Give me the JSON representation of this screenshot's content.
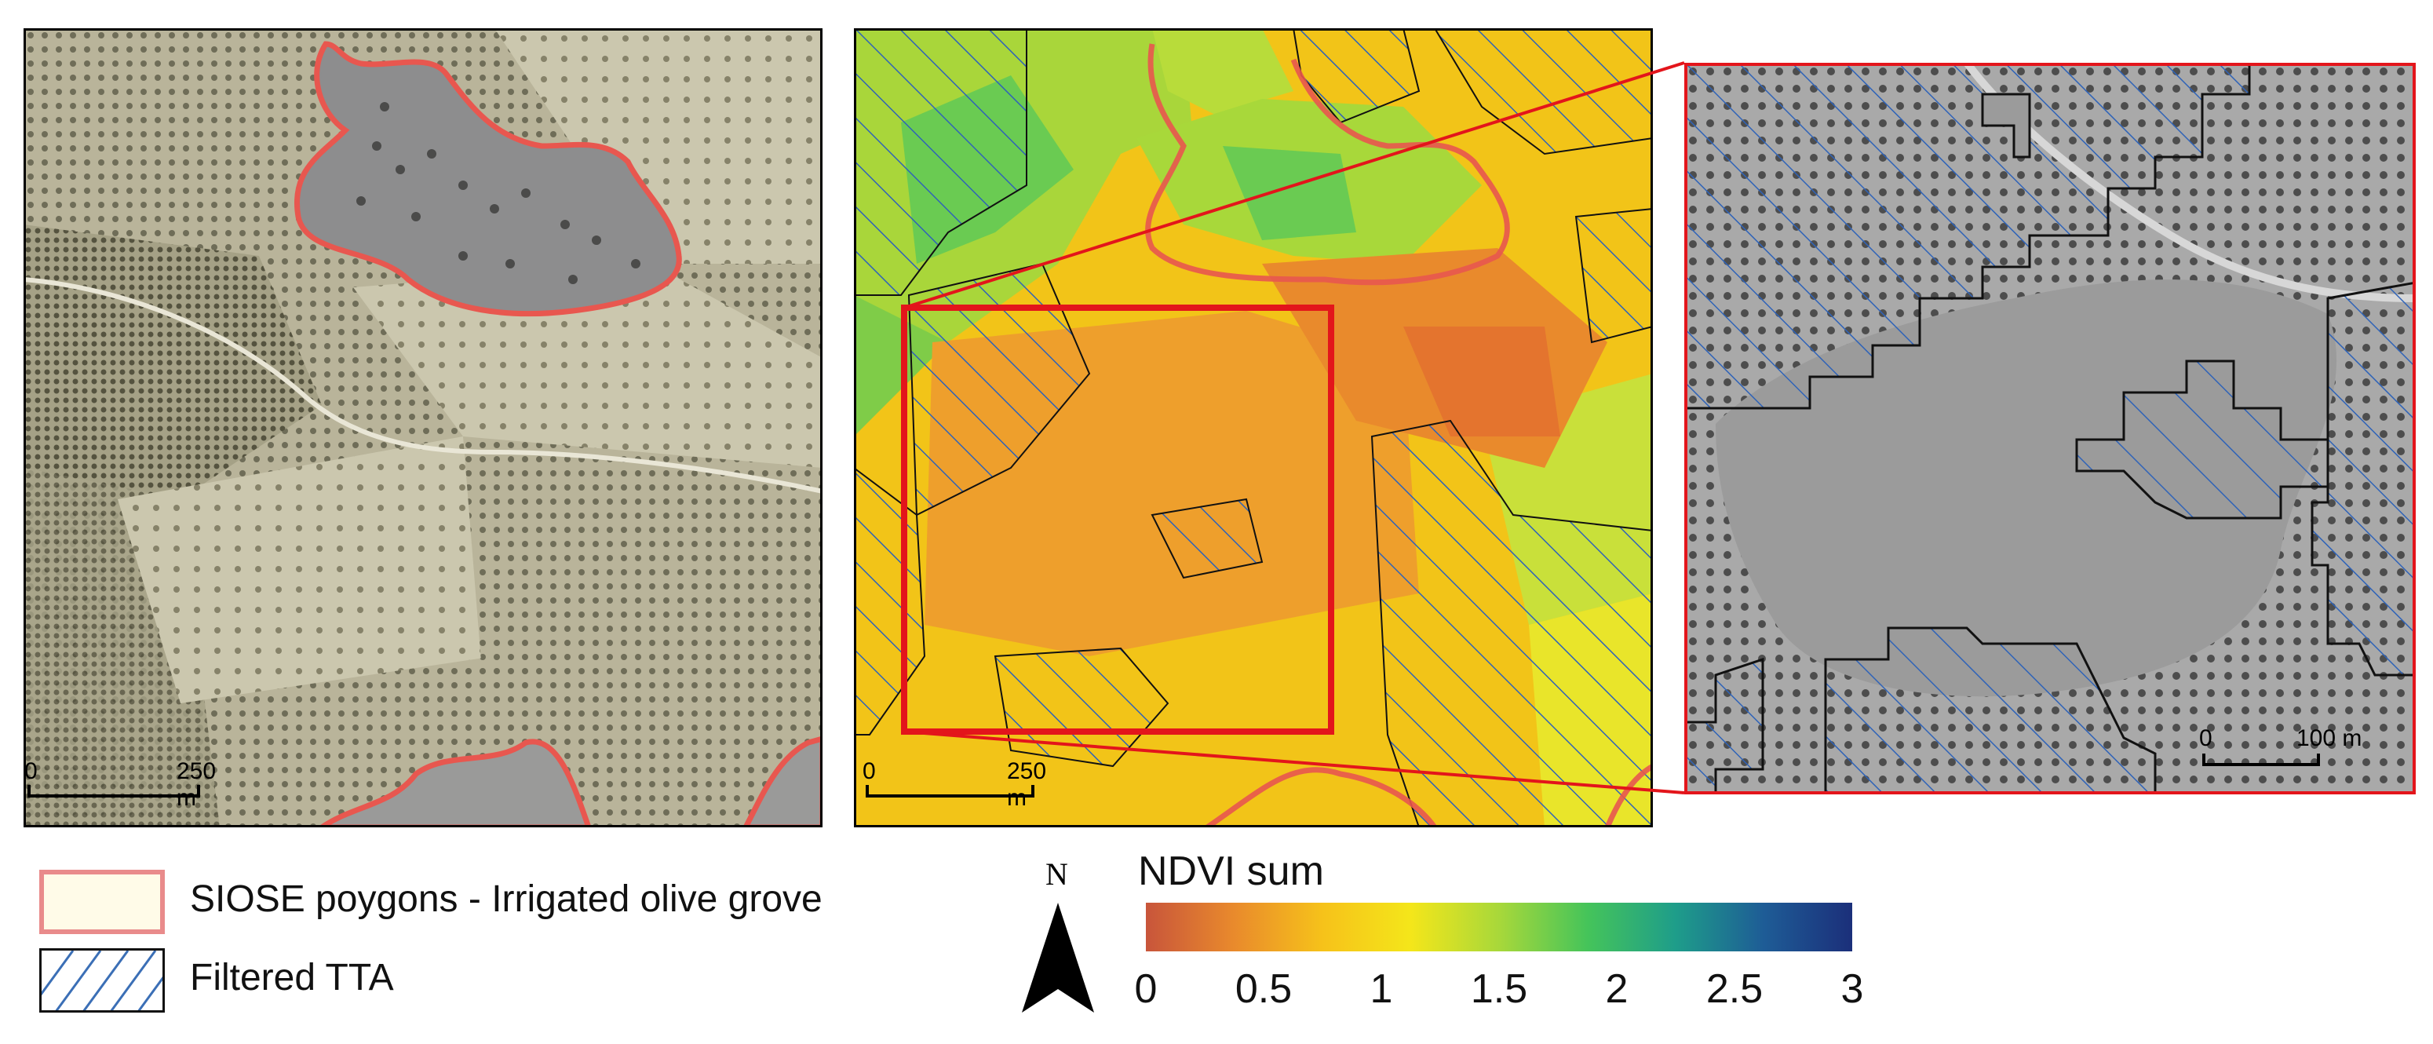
{
  "panels": {
    "left": {
      "scale_zero": "0",
      "scale_end": "250 m"
    },
    "middle": {
      "scale_zero": "0",
      "scale_end": "250 m"
    },
    "right": {
      "scale_zero": "0",
      "scale_end": "100 m"
    }
  },
  "legend": {
    "items": [
      {
        "label": "SIOSE poygons - Irrigated olive grove",
        "symbol": "siose-polygon",
        "fill": "#fffbe8",
        "stroke": "#e98b8b"
      },
      {
        "label": "Filtered TTA",
        "symbol": "hatch",
        "stroke": "#3b6fb6"
      }
    ]
  },
  "north_arrow": {
    "label": "N"
  },
  "colorbar": {
    "title": "NDVI sum",
    "ticks": [
      "0",
      "0.5",
      "1",
      "1.5",
      "2",
      "2.5",
      "3"
    ],
    "min": 0,
    "max": 3,
    "colors": [
      "#c8553b",
      "#e98a2c",
      "#f6c21a",
      "#f4e61a",
      "#a8d83a",
      "#45c45a",
      "#1e9d8a",
      "#1e5c96",
      "#1b2f7a"
    ]
  },
  "colors": {
    "siose_outline": "#e8574f",
    "hatch": "#2f63b8",
    "zoom_box": "#e3151b",
    "polygon_edge": "#111111"
  }
}
